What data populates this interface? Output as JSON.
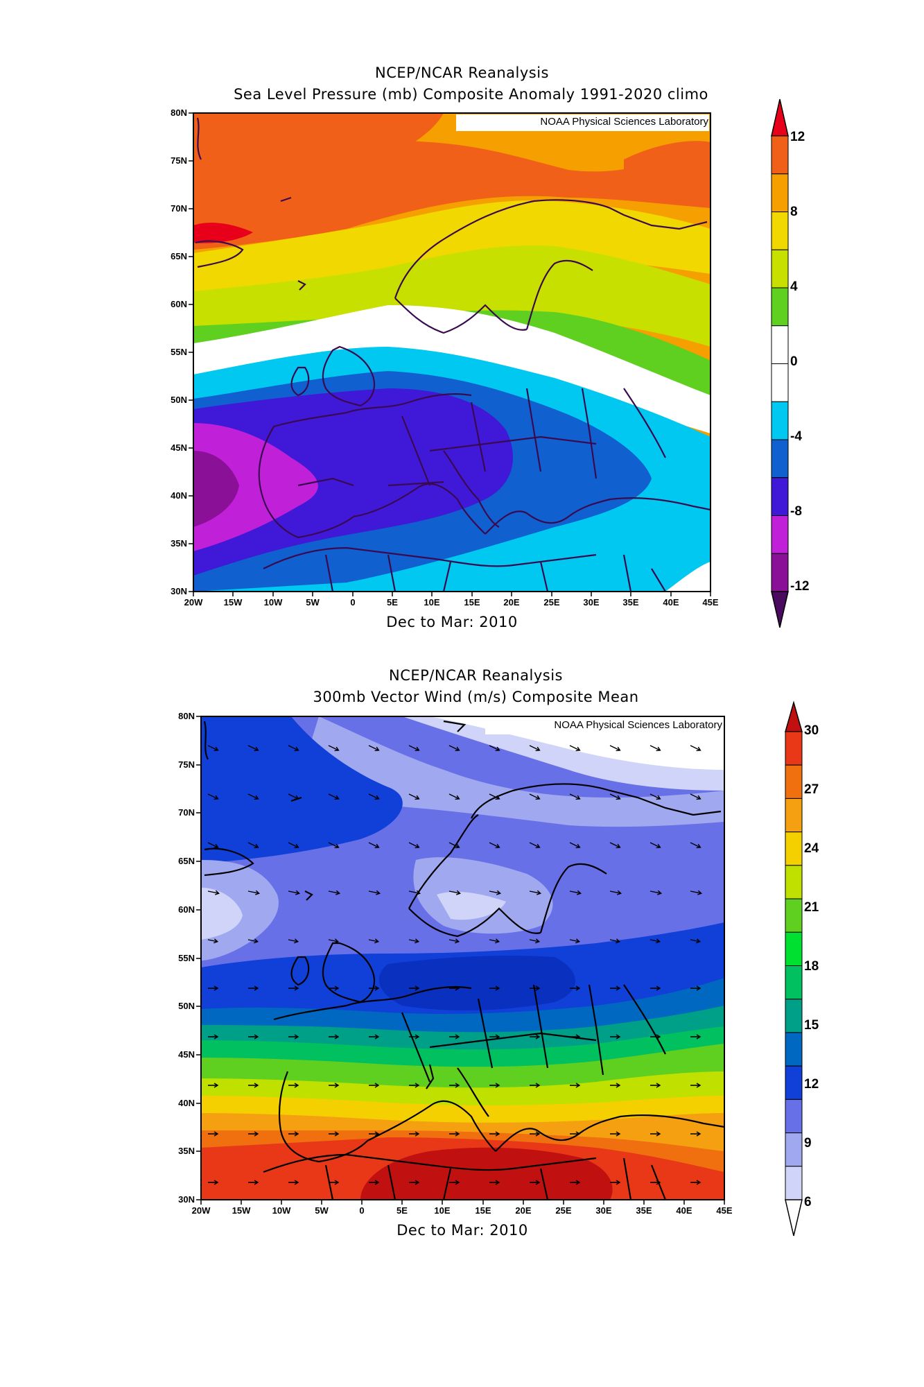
{
  "map1": {
    "title1": "NCEP/NCAR Reanalysis",
    "title2": "Sea Level Pressure (mb) Composite Anomaly 1991-2020 climo",
    "credit": "NOAA Physical Sciences Laboratory",
    "period": "Dec to Mar: 2010",
    "lat_labels": [
      "80N",
      "75N",
      "70N",
      "65N",
      "60N",
      "55N",
      "50N",
      "45N",
      "40N",
      "35N",
      "30N"
    ],
    "lon_labels": [
      "20W",
      "15W",
      "10W",
      "5W",
      "0",
      "5E",
      "10E",
      "15E",
      "20E",
      "25E",
      "30E",
      "35E",
      "40E",
      "45E"
    ],
    "colorbar": {
      "labels": [
        "12",
        "8",
        "4",
        "0",
        "-4",
        "-8",
        "-12"
      ],
      "colors": [
        "#e8001a",
        "#f06018",
        "#f5a000",
        "#f0d800",
        "#c8e000",
        "#60d020",
        "#ffffff",
        "#ffffff",
        "#00c8f0",
        "#1060d0",
        "#4018d8",
        "#c020d8",
        "#8a1098",
        "#4a0a60"
      ]
    }
  },
  "map2": {
    "title1": "NCEP/NCAR Reanalysis",
    "title2": "300mb Vector Wind (m/s) Composite Mean",
    "credit": "NOAA Physical Sciences Laboratory",
    "period": "Dec to Mar: 2010",
    "lat_labels": [
      "80N",
      "75N",
      "70N",
      "65N",
      "60N",
      "55N",
      "50N",
      "45N",
      "40N",
      "35N",
      "30N"
    ],
    "lon_labels": [
      "20W",
      "15W",
      "10W",
      "5W",
      "0",
      "5E",
      "10E",
      "15E",
      "20E",
      "25E",
      "30E",
      "35E",
      "40E",
      "45E"
    ],
    "colorbar": {
      "labels": [
        "30",
        "27",
        "24",
        "21",
        "18",
        "15",
        "12",
        "9",
        "6"
      ],
      "colors": [
        "#c01010",
        "#e83818",
        "#f07010",
        "#f5a010",
        "#f5d000",
        "#c0e000",
        "#60d020",
        "#00e030",
        "#00c060",
        "#00a088",
        "#0068c0",
        "#1040d8",
        "#6870e8",
        "#a0a8f0",
        "#d0d4f8",
        "#ffffff"
      ]
    }
  }
}
